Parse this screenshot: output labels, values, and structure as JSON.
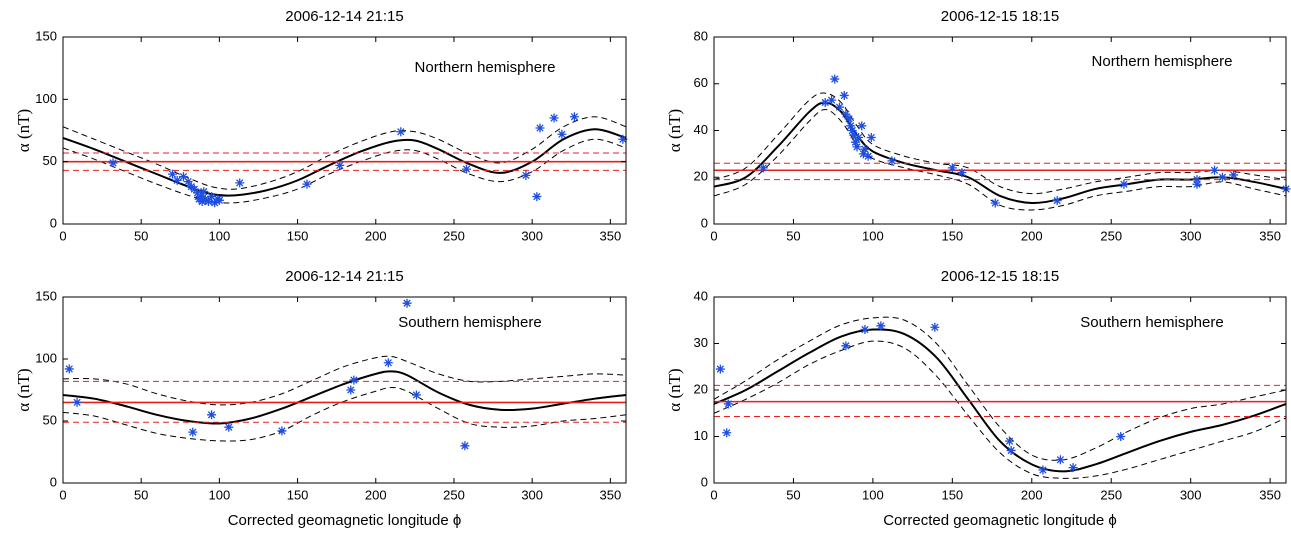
{
  "chart_data": [
    {
      "type": "scatter",
      "title": "2006-12-14  21:15",
      "annotation": "Northern hemisphere",
      "y_label": "α (nT)",
      "xlim": [
        0,
        360
      ],
      "xticks": [
        0,
        50,
        100,
        150,
        200,
        250,
        300,
        350
      ],
      "ylim": [
        0,
        150
      ],
      "yticks": [
        0,
        50,
        100,
        150
      ],
      "series": [
        {
          "style": "marker",
          "color": "#1f4fe0",
          "x": [
            32,
            70,
            73,
            77,
            80,
            82,
            84,
            86,
            87,
            88,
            89,
            90,
            91,
            93,
            95,
            97,
            99,
            100,
            113,
            156,
            177,
            216,
            258,
            296,
            303,
            305,
            314,
            319,
            327,
            358
          ],
          "values": [
            49,
            40,
            35,
            38,
            34,
            30,
            28,
            25,
            20,
            22,
            18,
            26,
            20,
            18,
            22,
            17,
            20,
            19,
            33,
            32,
            47,
            74,
            44,
            39,
            22,
            77,
            85,
            72,
            86,
            68
          ]
        },
        {
          "style": "solid",
          "color": "#000000",
          "x": [
            0,
            20,
            40,
            60,
            80,
            95,
            110,
            130,
            150,
            170,
            190,
            210,
            225,
            240,
            260,
            280,
            300,
            320,
            340,
            360
          ],
          "values": [
            69,
            60,
            50,
            40,
            30,
            24,
            23,
            27,
            35,
            47,
            58,
            66,
            67,
            60,
            48,
            41,
            50,
            68,
            76,
            69
          ]
        },
        {
          "style": "dashed",
          "color": "#000000",
          "x": [
            0,
            20,
            40,
            60,
            80,
            95,
            110,
            130,
            150,
            170,
            190,
            210,
            225,
            240,
            260,
            280,
            300,
            320,
            340,
            360
          ],
          "values": [
            78,
            68,
            58,
            48,
            37,
            30,
            28,
            33,
            42,
            55,
            66,
            74,
            74,
            68,
            56,
            49,
            60,
            78,
            86,
            78
          ]
        },
        {
          "style": "dashed",
          "color": "#000000",
          "x": [
            0,
            20,
            40,
            60,
            80,
            95,
            110,
            130,
            150,
            170,
            190,
            210,
            225,
            240,
            260,
            280,
            300,
            320,
            340,
            360
          ],
          "values": [
            61,
            52,
            42,
            32,
            23,
            18,
            17,
            21,
            28,
            40,
            50,
            58,
            59,
            52,
            40,
            34,
            42,
            59,
            68,
            61
          ]
        },
        {
          "style": "solid",
          "color": "#e8201c",
          "x": [
            0,
            360
          ],
          "values": [
            50,
            50
          ]
        },
        {
          "style": "dashed",
          "color": "#e8201c",
          "x": [
            0,
            360
          ],
          "values": [
            57,
            57
          ]
        },
        {
          "style": "dashed",
          "color": "#e8201c",
          "x": [
            0,
            360
          ],
          "values": [
            43,
            43
          ]
        }
      ]
    },
    {
      "type": "scatter",
      "title": "2006-12-15  18:15",
      "annotation": "Northern hemisphere",
      "y_label": "α (nT)",
      "xlim": [
        0,
        360
      ],
      "xticks": [
        0,
        50,
        100,
        150,
        200,
        250,
        300,
        350
      ],
      "ylim": [
        0,
        80
      ],
      "yticks": [
        0,
        20,
        40,
        60,
        80
      ],
      "series": [
        {
          "style": "marker",
          "color": "#1f4fe0",
          "x": [
            31,
            70,
            74,
            76,
            79,
            82,
            83,
            85,
            86,
            87,
            88,
            89,
            90,
            91,
            93,
            94,
            95,
            97,
            99,
            112,
            150,
            156,
            177,
            216,
            258,
            304,
            304,
            315,
            320,
            327,
            360
          ],
          "values": [
            24,
            52,
            53,
            62,
            50,
            55,
            47,
            45,
            42,
            40,
            38,
            35,
            33,
            37,
            42,
            30,
            32,
            29,
            37,
            27,
            24,
            22,
            9,
            10,
            17,
            17,
            19,
            23,
            20,
            21,
            15
          ]
        },
        {
          "style": "solid",
          "color": "#000000",
          "x": [
            0,
            20,
            40,
            60,
            70,
            80,
            90,
            100,
            120,
            140,
            160,
            180,
            200,
            220,
            240,
            260,
            280,
            300,
            320,
            340,
            360
          ],
          "values": [
            16,
            20,
            33,
            48,
            52,
            48,
            38,
            31,
            26,
            23,
            20,
            12,
            9,
            11,
            15,
            17,
            19,
            19,
            20,
            18,
            15
          ]
        },
        {
          "style": "dashed",
          "color": "#000000",
          "x": [
            0,
            20,
            40,
            60,
            70,
            80,
            90,
            100,
            120,
            140,
            160,
            180,
            200,
            220,
            240,
            260,
            280,
            300,
            320,
            340,
            360
          ],
          "values": [
            19,
            24,
            38,
            53,
            56,
            52,
            42,
            34,
            29,
            26,
            24,
            16,
            13,
            15,
            18,
            20,
            22,
            22,
            23,
            21,
            19
          ]
        },
        {
          "style": "dashed",
          "color": "#000000",
          "x": [
            0,
            20,
            40,
            60,
            70,
            80,
            90,
            100,
            120,
            140,
            160,
            180,
            200,
            220,
            240,
            260,
            280,
            300,
            320,
            340,
            360
          ],
          "values": [
            12,
            17,
            29,
            44,
            49,
            44,
            34,
            28,
            24,
            21,
            17,
            8,
            6,
            8,
            12,
            14,
            16,
            16,
            18,
            15,
            12
          ]
        },
        {
          "style": "solid",
          "color": "#e8201c",
          "x": [
            0,
            360
          ],
          "values": [
            23,
            23
          ]
        },
        {
          "style": "dashed",
          "color": "#e8201c",
          "x": [
            0,
            360
          ],
          "values": [
            26,
            26
          ]
        },
        {
          "style": "dashed",
          "color": "#e8201c",
          "x": [
            0,
            360
          ],
          "values": [
            19,
            19
          ]
        }
      ]
    },
    {
      "type": "scatter",
      "title": "2006-12-14  21:15",
      "annotation": "Southern hemisphere",
      "y_label": "α (nT)",
      "x_label": "Corrected geomagnetic longitude ϕ",
      "xlim": [
        0,
        360
      ],
      "xticks": [
        0,
        50,
        100,
        150,
        200,
        250,
        300,
        350
      ],
      "ylim": [
        0,
        150
      ],
      "yticks": [
        0,
        50,
        100,
        150
      ],
      "series": [
        {
          "style": "marker",
          "color": "#1f4fe0",
          "x": [
            4,
            9,
            83,
            95,
            106,
            140,
            184,
            186,
            220,
            208,
            226,
            257
          ],
          "values": [
            92,
            65,
            41,
            55,
            45,
            42,
            75,
            83,
            145,
            97,
            71,
            30
          ]
        },
        {
          "style": "solid",
          "color": "#000000",
          "x": [
            0,
            20,
            40,
            60,
            80,
            100,
            120,
            140,
            160,
            180,
            200,
            210,
            220,
            240,
            260,
            280,
            300,
            320,
            340,
            360
          ],
          "values": [
            71,
            68,
            62,
            55,
            50,
            48,
            52,
            60,
            70,
            80,
            88,
            90,
            87,
            73,
            63,
            59,
            60,
            64,
            68,
            71
          ]
        },
        {
          "style": "dashed",
          "color": "#000000",
          "x": [
            0,
            20,
            40,
            60,
            80,
            100,
            120,
            140,
            160,
            180,
            200,
            210,
            220,
            240,
            260,
            280,
            300,
            320,
            340,
            360
          ],
          "values": [
            84,
            84,
            80,
            72,
            66,
            63,
            65,
            72,
            83,
            94,
            101,
            102,
            98,
            88,
            82,
            82,
            84,
            86,
            88,
            87
          ]
        },
        {
          "style": "dashed",
          "color": "#000000",
          "x": [
            0,
            20,
            40,
            60,
            80,
            100,
            120,
            140,
            160,
            180,
            200,
            210,
            220,
            240,
            260,
            280,
            300,
            320,
            340,
            360
          ],
          "values": [
            57,
            54,
            47,
            40,
            36,
            34,
            35,
            42,
            55,
            66,
            74,
            77,
            74,
            60,
            48,
            45,
            46,
            50,
            52,
            55
          ]
        },
        {
          "style": "solid",
          "color": "#e8201c",
          "x": [
            0,
            360
          ],
          "values": [
            65,
            65
          ]
        },
        {
          "style": "dashed",
          "color": "#e8201c",
          "x": [
            0,
            360
          ],
          "values": [
            82,
            82
          ]
        },
        {
          "style": "dashed",
          "color": "#e8201c",
          "x": [
            0,
            360
          ],
          "values": [
            49,
            49
          ]
        }
      ]
    },
    {
      "type": "scatter",
      "title": "2006-12-15  18:15",
      "annotation": "Southern hemisphere",
      "y_label": "α (nT)",
      "x_label": "Corrected geomagnetic longitude ϕ",
      "xlim": [
        0,
        360
      ],
      "xticks": [
        0,
        50,
        100,
        150,
        200,
        250,
        300,
        350
      ],
      "ylim": [
        0,
        40
      ],
      "yticks": [
        0,
        10,
        20,
        30,
        40
      ],
      "series": [
        {
          "style": "marker",
          "color": "#1f4fe0",
          "x": [
            4,
            8,
            9,
            83,
            95,
            105,
            139,
            186,
            187,
            207,
            218,
            226,
            256
          ],
          "values": [
            24.5,
            10.8,
            17,
            29.5,
            33,
            33.8,
            33.5,
            9,
            7,
            2.8,
            5,
            3.3,
            10
          ]
        },
        {
          "style": "solid",
          "color": "#000000",
          "x": [
            0,
            20,
            40,
            60,
            80,
            100,
            120,
            140,
            160,
            180,
            200,
            220,
            240,
            260,
            280,
            300,
            320,
            340,
            360
          ],
          "values": [
            17,
            20,
            24,
            28,
            31.5,
            33,
            32,
            27,
            18,
            9,
            4,
            2.5,
            4,
            6.5,
            9,
            11,
            12.5,
            14.5,
            17
          ]
        },
        {
          "style": "dashed",
          "color": "#000000",
          "x": [
            0,
            20,
            40,
            60,
            80,
            100,
            120,
            140,
            160,
            180,
            200,
            220,
            240,
            260,
            280,
            300,
            320,
            340,
            360
          ],
          "values": [
            18,
            22,
            26.5,
            30.5,
            34,
            35.5,
            35,
            30,
            21,
            12,
            6,
            5,
            7.5,
            11,
            14,
            16,
            17,
            18.5,
            20
          ]
        },
        {
          "style": "dashed",
          "color": "#000000",
          "x": [
            0,
            20,
            40,
            60,
            80,
            100,
            120,
            140,
            160,
            180,
            200,
            220,
            240,
            260,
            280,
            300,
            320,
            340,
            360
          ],
          "values": [
            15,
            18,
            21.5,
            25.5,
            28.5,
            30.5,
            29,
            23,
            14.5,
            6.5,
            2,
            1,
            1.5,
            3,
            5,
            7,
            9,
            11,
            14
          ]
        },
        {
          "style": "solid",
          "color": "#e8201c",
          "x": [
            0,
            360
          ],
          "values": [
            17.5,
            17.5
          ]
        },
        {
          "style": "dashed",
          "color": "#e8201c",
          "x": [
            0,
            360
          ],
          "values": [
            21,
            21
          ]
        },
        {
          "style": "dashed",
          "color": "#e8201c",
          "x": [
            0,
            360
          ],
          "values": [
            14.3,
            14.3
          ]
        }
      ]
    }
  ]
}
